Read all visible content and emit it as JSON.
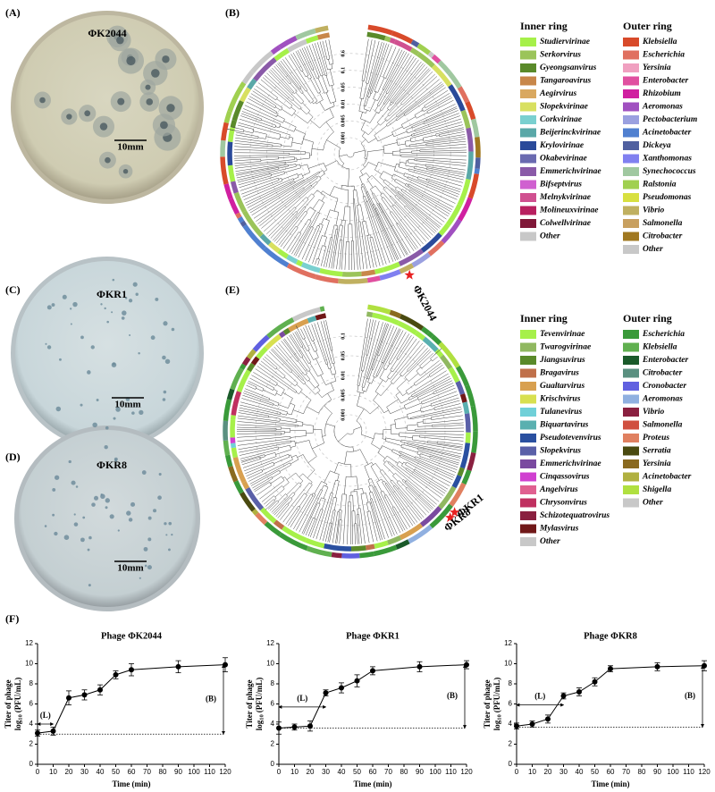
{
  "panels": {
    "labels": [
      "(A)",
      "(B)",
      "(C)",
      "(D)",
      "(E)",
      "(F)"
    ],
    "plates": [
      {
        "name": "ΦK2044",
        "scale": "10mm"
      },
      {
        "name": "ΦKR1",
        "scale": "10mm"
      },
      {
        "name": "ΦKR8",
        "scale": "10mm"
      }
    ],
    "trees": [
      {
        "scale_labels": [
          "0.6",
          "0.1",
          "0.05",
          "0.01",
          "0.005",
          "0.001"
        ],
        "phages": [
          "ΦK2044"
        ],
        "legends": [
          {
            "title": "Inner ring",
            "items": [
              {
                "name": "Studiervirinae",
                "color": "#a6f04a"
              },
              {
                "name": "Serkorvirus",
                "color": "#9bc45a"
              },
              {
                "name": "Gyeongsanvirus",
                "color": "#5a8a2a"
              },
              {
                "name": "Tangaroavirus",
                "color": "#c8874a"
              },
              {
                "name": "Aegirvirus",
                "color": "#d9a860"
              },
              {
                "name": "Slopekvirinae",
                "color": "#d8e060"
              },
              {
                "name": "Corkvirinae",
                "color": "#7ad0d0"
              },
              {
                "name": "Beijerinckvirinae",
                "color": "#5aa8a8"
              },
              {
                "name": "Krylovirinae",
                "color": "#2a4a9a"
              },
              {
                "name": "Okabevirinae",
                "color": "#6a6ab0"
              },
              {
                "name": "Emmerichvirinae",
                "color": "#8a5aa8"
              },
              {
                "name": "Bifseptvirus",
                "color": "#d060d0"
              },
              {
                "name": "Melnykvirinae",
                "color": "#d05090"
              },
              {
                "name": "Molineuxvirinae",
                "color": "#b82060"
              },
              {
                "name": "Colwellvirinae",
                "color": "#801838"
              },
              {
                "name": "Other",
                "color": "#c8c8c8"
              }
            ]
          },
          {
            "title": "Outer ring",
            "items": [
              {
                "name": "Klebsiella",
                "color": "#d84a2a"
              },
              {
                "name": "Escherichia",
                "color": "#e07060"
              },
              {
                "name": "Yersinia",
                "color": "#f0a0c0"
              },
              {
                "name": "Enterobacter",
                "color": "#e050a0"
              },
              {
                "name": "Rhizobium",
                "color": "#d020a0"
              },
              {
                "name": "Aeromonas",
                "color": "#a050c0"
              },
              {
                "name": "Pectobacterium",
                "color": "#9aa0e0"
              },
              {
                "name": "Acinetobacter",
                "color": "#5080d0"
              },
              {
                "name": "Dickeya",
                "color": "#5060a0"
              },
              {
                "name": "Xanthomonas",
                "color": "#8080f0"
              },
              {
                "name": "Synechococcus",
                "color": "#a0c8a0"
              },
              {
                "name": "Ralstonia",
                "color": "#a0d050"
              },
              {
                "name": "Pseudomonas",
                "color": "#d8e040"
              },
              {
                "name": "Vibrio",
                "color": "#c0b060"
              },
              {
                "name": "Salmonella",
                "color": "#c8a060"
              },
              {
                "name": "Citrobacter",
                "color": "#a07820"
              },
              {
                "name": "Other",
                "color": "#c8c8c8"
              }
            ]
          }
        ]
      },
      {
        "scale_labels": [
          "0.1",
          "0.05",
          "0.01",
          "0.005",
          "0.001"
        ],
        "phages": [
          "ΦKR1",
          "ΦKR8"
        ],
        "legends": [
          {
            "title": "Inner ring",
            "items": [
              {
                "name": "Tevenvirinae",
                "color": "#a6f04a"
              },
              {
                "name": "Twarogvirinae",
                "color": "#90b860"
              },
              {
                "name": "Jiangsuvirus",
                "color": "#5a8a2a"
              },
              {
                "name": "Bragavirus",
                "color": "#c0704a"
              },
              {
                "name": "Gualtarvirus",
                "color": "#d8a050"
              },
              {
                "name": "Krischvirus",
                "color": "#d8e050"
              },
              {
                "name": "Tulanevirus",
                "color": "#70d0d8"
              },
              {
                "name": "Biquartavirus",
                "color": "#5ab0b0"
              },
              {
                "name": "Pseudotevenvirus",
                "color": "#2a50a0"
              },
              {
                "name": "Slopekvirus",
                "color": "#5a60a8"
              },
              {
                "name": "Emmerichvirinae",
                "color": "#7a4aa0"
              },
              {
                "name": "Cinqassovirus",
                "color": "#d040d0"
              },
              {
                "name": "Angelvirus",
                "color": "#e06090"
              },
              {
                "name": "Chrysonvirus",
                "color": "#c03060"
              },
              {
                "name": "Schizotequatrovirus",
                "color": "#8a2040"
              },
              {
                "name": "Mylasvirus",
                "color": "#701818"
              },
              {
                "name": "Other",
                "color": "#c8c8c8"
              }
            ]
          },
          {
            "title": "Outer ring",
            "items": [
              {
                "name": "Escherichia",
                "color": "#3a9a3a"
              },
              {
                "name": "Klebsiella",
                "color": "#60b050"
              },
              {
                "name": "Enterobacter",
                "color": "#1a5a2a"
              },
              {
                "name": "Citrobacter",
                "color": "#5a9080"
              },
              {
                "name": "Cronobacter",
                "color": "#6060e0"
              },
              {
                "name": "Aeromonas",
                "color": "#90b0e0"
              },
              {
                "name": "Vibrio",
                "color": "#8a2040"
              },
              {
                "name": "Salmonella",
                "color": "#d05040"
              },
              {
                "name": "Proteus",
                "color": "#e08060"
              },
              {
                "name": "Serratia",
                "color": "#4a4a10"
              },
              {
                "name": "Yersinia",
                "color": "#8a6a20"
              },
              {
                "name": "Acinetobacter",
                "color": "#b0b040"
              },
              {
                "name": "Shigella",
                "color": "#b0e040"
              },
              {
                "name": "Other",
                "color": "#c8c8c8"
              }
            ]
          }
        ]
      }
    ]
  },
  "chart_data": [
    {
      "type": "line",
      "title": "Phage ΦK2044",
      "xlabel": "Time (min)",
      "ylabel": [
        "Titer of phage",
        "log",
        "10",
        "(PFU/mL)"
      ],
      "x": [
        0,
        10,
        20,
        30,
        40,
        50,
        60,
        90,
        120
      ],
      "values": [
        3.1,
        3.3,
        6.6,
        6.9,
        7.4,
        8.9,
        9.4,
        9.7,
        9.9
      ],
      "errors": [
        0.3,
        0.4,
        0.7,
        0.5,
        0.5,
        0.4,
        0.6,
        0.6,
        0.7
      ],
      "color": "#000000",
      "baseline": 3.0,
      "annotations": [
        {
          "text": "(L)",
          "x": [
            0,
            10
          ],
          "y": 4.0
        },
        {
          "text": "(B)",
          "x": 120,
          "y": [
            3.0,
            9.9
          ]
        }
      ],
      "xlim": [
        0,
        120
      ],
      "xticks": [
        0,
        10,
        20,
        30,
        40,
        50,
        60,
        70,
        80,
        90,
        100,
        110,
        120
      ],
      "ylim": [
        0,
        12
      ],
      "yticks": [
        0,
        2,
        4,
        6,
        8,
        10,
        12
      ]
    },
    {
      "type": "line",
      "title": "Phage ΦKR1",
      "xlabel": "Time (min)",
      "ylabel": [
        "Titer of phage",
        "log",
        "10",
        "(PFU/mL)"
      ],
      "x": [
        0,
        10,
        20,
        30,
        40,
        50,
        60,
        90,
        120
      ],
      "values": [
        3.6,
        3.7,
        3.8,
        7.1,
        7.6,
        8.3,
        9.3,
        9.7,
        9.9
      ],
      "errors": [
        0.6,
        0.3,
        0.5,
        0.3,
        0.5,
        0.6,
        0.4,
        0.5,
        0.4
      ],
      "color": "#000000",
      "baseline": 3.6,
      "annotations": [
        {
          "text": "(L)",
          "x": [
            0,
            30
          ],
          "y": 5.7
        },
        {
          "text": "(B)",
          "x": 120,
          "y": [
            3.6,
            9.9
          ]
        }
      ],
      "xlim": [
        0,
        120
      ],
      "xticks": [
        0,
        10,
        20,
        30,
        40,
        50,
        60,
        70,
        80,
        90,
        100,
        110,
        120
      ],
      "ylim": [
        0,
        12
      ],
      "yticks": [
        0,
        2,
        4,
        6,
        8,
        10,
        12
      ]
    },
    {
      "type": "line",
      "title": "Phage ΦKR8",
      "xlabel": "Time (min)",
      "ylabel": [
        "Titer of phage",
        "log",
        "10",
        "(PFU/mL)"
      ],
      "x": [
        0,
        10,
        20,
        30,
        40,
        50,
        60,
        90,
        120
      ],
      "values": [
        3.8,
        4.0,
        4.5,
        6.8,
        7.2,
        8.2,
        9.5,
        9.7,
        9.8
      ],
      "errors": [
        0.3,
        0.3,
        0.4,
        0.3,
        0.4,
        0.4,
        0.3,
        0.4,
        0.5
      ],
      "color": "#000000",
      "baseline": 3.7,
      "annotations": [
        {
          "text": "(L)",
          "x": [
            0,
            30
          ],
          "y": 5.9
        },
        {
          "text": "(B)",
          "x": 120,
          "y": [
            3.7,
            9.8
          ]
        }
      ],
      "xlim": [
        0,
        120
      ],
      "xticks": [
        0,
        10,
        20,
        30,
        40,
        50,
        60,
        70,
        80,
        90,
        100,
        110,
        120
      ],
      "ylim": [
        0,
        12
      ],
      "yticks": [
        0,
        2,
        4,
        6,
        8,
        10,
        12
      ]
    }
  ]
}
